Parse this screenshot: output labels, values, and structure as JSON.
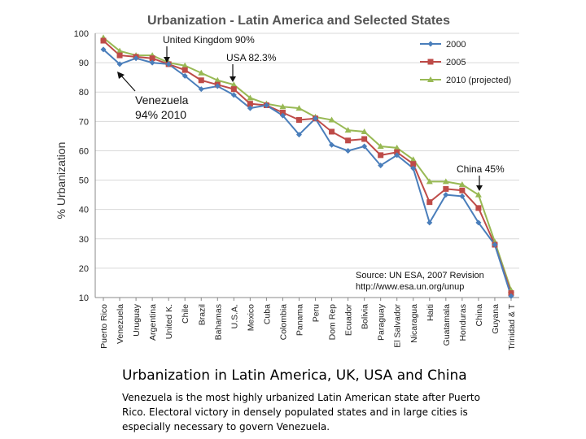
{
  "chart_data": {
    "type": "line",
    "title": "Urbanization - Latin America and Selected States",
    "xlabel": "",
    "ylabel": "% Urbanization",
    "ylim": [
      10,
      100
    ],
    "yticks": [
      "10",
      "20",
      "30",
      "40",
      "50",
      "60",
      "70",
      "80",
      "90",
      "100"
    ],
    "grid": true,
    "legend_position": "top-right",
    "categories": [
      "Puerto Rico",
      "Venezuela",
      "Uruguay",
      "Argentina",
      "United K.",
      "Chile",
      "Brazil",
      "Bahamas",
      "U.S.A.",
      "Mexico",
      "Cuba",
      "Colombia",
      "Panama",
      "Peru",
      "Dom Rep",
      "Ecuador",
      "Bolivia",
      "Paraguay",
      "El Salvador",
      "Nicaragua",
      "Haiti",
      "Guatamala",
      "Honduras",
      "China",
      "Guyana",
      "Trinidad & T"
    ],
    "series": [
      {
        "name": "2000",
        "color": "#4a7ebb",
        "marker": "diamond",
        "values": [
          94.5,
          89.5,
          91.5,
          90,
          89.5,
          85.5,
          81,
          82,
          79,
          74.5,
          75.5,
          72,
          65.5,
          71,
          62,
          60,
          61.5,
          55,
          58.5,
          54,
          35.5,
          45,
          44.5,
          35.5,
          28,
          10.5
        ]
      },
      {
        "name": "2005",
        "color": "#be4b48",
        "marker": "square",
        "values": [
          97.5,
          92.5,
          92,
          91.5,
          89.5,
          87.5,
          84,
          82.5,
          81,
          76,
          75.5,
          73,
          70.5,
          71,
          66.5,
          63.5,
          64,
          58.5,
          59.5,
          55.5,
          42.5,
          47,
          46.5,
          40.5,
          28,
          11.5
        ]
      },
      {
        "name": "2010 (projected)",
        "color": "#98b954",
        "marker": "triangle",
        "values": [
          98.5,
          94,
          92.5,
          92.5,
          90,
          89,
          86.5,
          84,
          82.5,
          78,
          76,
          75,
          74.5,
          71.5,
          70.5,
          67,
          66.5,
          61.5,
          61,
          57,
          49.5,
          49.5,
          48.5,
          45,
          29,
          12.5
        ]
      }
    ],
    "annotations": [
      {
        "text": "United Kingdom  90%"
      },
      {
        "text": "USA  82.3%"
      },
      {
        "text": "Venezuela"
      },
      {
        "text": "94%  2010"
      },
      {
        "text": "China  45%"
      },
      {
        "text": "Source: UN ESA, 2007 Revision"
      },
      {
        "text": "http://www.esa.un.org/unup"
      }
    ]
  },
  "caption": {
    "title": "Urbanization in Latin America, UK, USA and China",
    "body_lines": [
      "Venezuela is the most highly urbanized Latin American state after Puerto",
      "Rico.  Electoral victory in densely populated states and in large cities is",
      "especially necessary to govern Venezuela."
    ]
  }
}
